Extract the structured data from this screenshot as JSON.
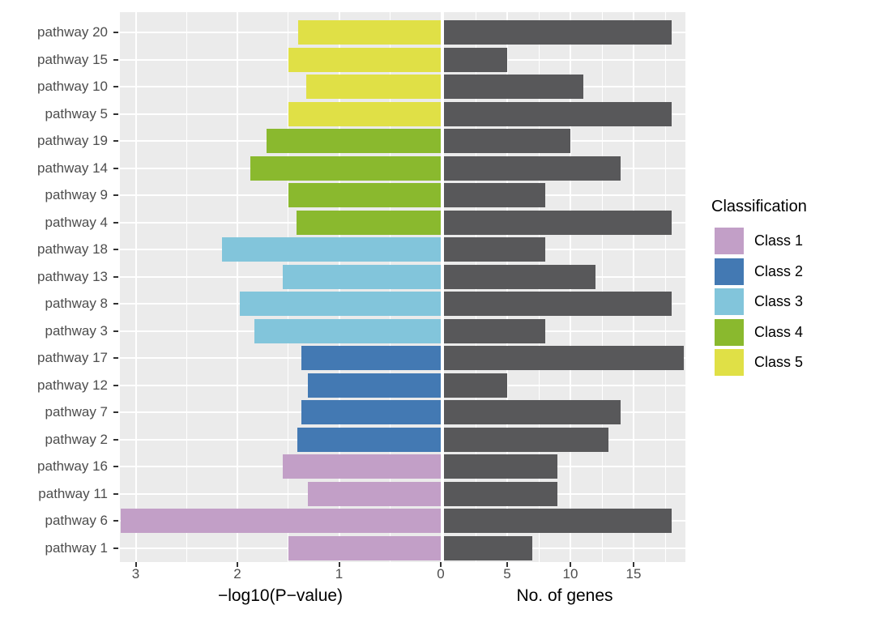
{
  "chart_data": {
    "type": "bar",
    "orientation": "horizontal",
    "title": "",
    "categories": [
      "pathway 20",
      "pathway 15",
      "pathway 10",
      "pathway 5",
      "pathway 19",
      "pathway 14",
      "pathway 9",
      "pathway 4",
      "pathway 18",
      "pathway 13",
      "pathway 8",
      "pathway 3",
      "pathway 17",
      "pathway 12",
      "pathway 7",
      "pathway 2",
      "pathway 16",
      "pathway 11",
      "pathway 6",
      "pathway 1"
    ],
    "category_class": [
      "Class 5",
      "Class 5",
      "Class 5",
      "Class 5",
      "Class 4",
      "Class 4",
      "Class 4",
      "Class 4",
      "Class 3",
      "Class 3",
      "Class 3",
      "Class 3",
      "Class 2",
      "Class 2",
      "Class 2",
      "Class 2",
      "Class 1",
      "Class 1",
      "Class 1",
      "Class 1"
    ],
    "series": [
      {
        "name": "−log10(P−value)",
        "panel": "left",
        "values": [
          1.4,
          1.5,
          1.32,
          1.5,
          1.71,
          1.87,
          1.5,
          1.42,
          2.15,
          1.55,
          1.98,
          1.83,
          1.37,
          1.31,
          1.37,
          1.41,
          1.55,
          1.31,
          3.15,
          1.5
        ],
        "colored_by": "category_class"
      },
      {
        "name": "No. of genes",
        "panel": "right",
        "values": [
          18,
          5,
          11,
          18,
          10,
          14,
          8,
          18,
          8,
          12,
          18,
          8,
          19,
          5,
          14,
          13,
          9,
          9,
          18,
          7
        ],
        "color": "#58585a"
      }
    ],
    "left_axis": {
      "label": "−log10(P−value)",
      "ticks": [
        3,
        2,
        1,
        0
      ],
      "minor_ticks": [
        0.5,
        1.5,
        2.5
      ],
      "max": 3.15,
      "reversed": true
    },
    "right_axis": {
      "label": "No. of genes",
      "ticks": [
        5,
        10,
        15
      ],
      "minor_ticks": [
        2.5,
        7.5,
        12.5,
        17.5
      ],
      "max": 19.1
    },
    "legend": {
      "title": "Classification",
      "items": [
        {
          "label": "Class 1",
          "color": "#c29fc7"
        },
        {
          "label": "Class 2",
          "color": "#4379b3"
        },
        {
          "label": "Class 3",
          "color": "#82c5db"
        },
        {
          "label": "Class 4",
          "color": "#8ab92e"
        },
        {
          "label": "Class 5",
          "color": "#e0e046"
        }
      ]
    },
    "style": {
      "panel_background": "#ebebeb",
      "gridline_color": "#ffffff",
      "tick_color": "#333333",
      "tick_label_color": "#4d4d4d",
      "genes_bar_color": "#58585a"
    }
  }
}
